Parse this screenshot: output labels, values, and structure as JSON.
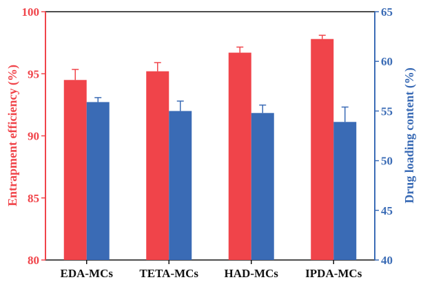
{
  "chart_data": {
    "type": "bar",
    "categories": [
      "EDA-MCs",
      "TETA-MCs",
      "HAD-MCs",
      "IPDA-MCs"
    ],
    "series": [
      {
        "axis": "left",
        "color": "#f0444a",
        "values": [
          94.5,
          95.2,
          96.7,
          97.8
        ],
        "errors": [
          0.85,
          0.7,
          0.45,
          0.3
        ]
      },
      {
        "axis": "right",
        "color": "#3a6bb5",
        "values": [
          55.9,
          55.0,
          54.8,
          53.9
        ],
        "errors": [
          0.45,
          1.0,
          0.8,
          1.5
        ]
      }
    ],
    "ylabel": "Entrapment efficiency (%)",
    "ylabel_right": "Drug loading content (%)",
    "ylim": [
      80,
      100
    ],
    "ylim_right": [
      40,
      65
    ],
    "yticks": [
      "80",
      "85",
      "90",
      "95",
      "100"
    ],
    "yticks_right": [
      "40",
      "45",
      "50",
      "55",
      "60",
      "65"
    ],
    "left_axis_color": "#f0444a",
    "right_axis_color": "#3a6bb5",
    "grid": false,
    "legend": "none"
  }
}
